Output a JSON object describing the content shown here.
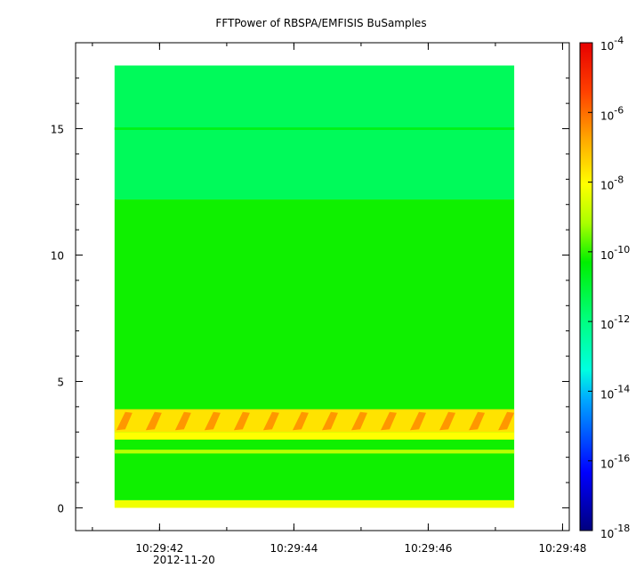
{
  "chart_data": {
    "type": "heatmap",
    "title": "FFTPower of RBSPA/EMFISIS  BuSamples",
    "x_axis": {
      "type": "time",
      "date_label": "2012-11-20",
      "range": [
        "10:29:40.75",
        "10:29:48.10"
      ],
      "ticks": [
        "10:29:42",
        "10:29:44",
        "10:29:46",
        "10:29:48"
      ],
      "data_start": "10:29:41.33",
      "data_end": "10:29:47.28"
    },
    "y_axis": {
      "range": [
        -0.9,
        18.4
      ],
      "ticks": [
        0,
        5,
        10,
        15
      ],
      "data_range": [
        0,
        17.5
      ]
    },
    "colorbar": {
      "scale": "log",
      "range": [
        1e-18,
        0.0001
      ],
      "colormap": "rainbow (blue-cyan-green-yellow-orange-red)",
      "tick_labels": [
        {
          "base": "10",
          "exp": "-4"
        },
        {
          "base": "10",
          "exp": "-6"
        },
        {
          "base": "10",
          "exp": "-8"
        },
        {
          "base": "10",
          "exp": "-10"
        },
        {
          "base": "10",
          "exp": "-12"
        },
        {
          "base": "10",
          "exp": "-14"
        },
        {
          "base": "10",
          "exp": "-16"
        },
        {
          "base": "10",
          "exp": "-18"
        }
      ]
    },
    "bands": [
      {
        "y_range": [
          12.2,
          17.5
        ],
        "level_exp": -11.5,
        "note": "cyan-green region"
      },
      {
        "y_range": [
          14.95,
          15.05
        ],
        "level_exp": -10.6,
        "note": "narrow line"
      },
      {
        "y_range": [
          0.3,
          12.2
        ],
        "level_exp": -10.2,
        "note": "green region"
      },
      {
        "y_range": [
          3.0,
          3.9
        ],
        "level_exp": -7.6,
        "note": "yellow-orange wave band"
      },
      {
        "y_range": [
          2.7,
          3.0
        ],
        "level_exp": -8.0,
        "note": "yellow band"
      },
      {
        "y_range": [
          2.15,
          2.3
        ],
        "level_exp": -9.0,
        "note": "faint band"
      },
      {
        "y_range": [
          0.0,
          0.3
        ],
        "level_exp": -8.2,
        "note": "yellow bottom edge"
      }
    ]
  }
}
